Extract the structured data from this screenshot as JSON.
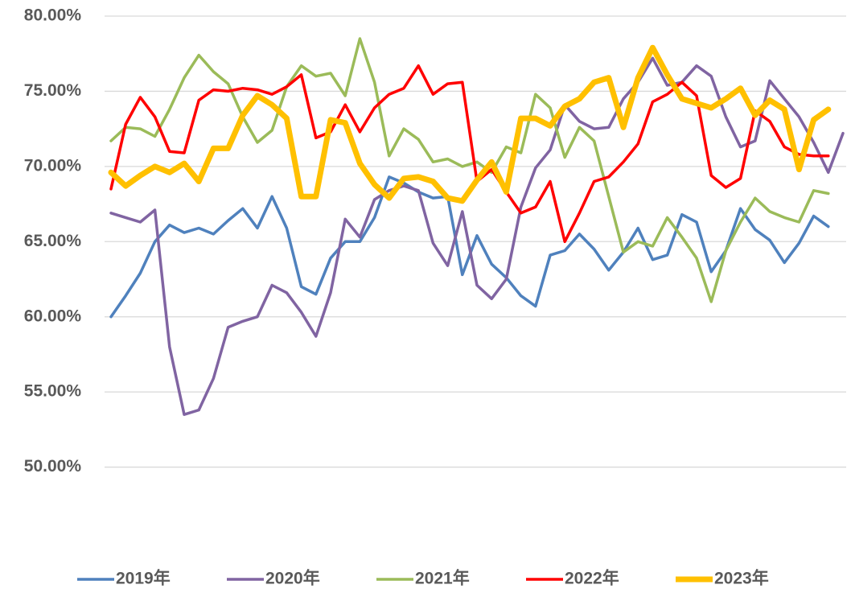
{
  "chart_data": {
    "type": "line",
    "categories": [
      null,
      null,
      null,
      null,
      null,
      null,
      null,
      null,
      null,
      null,
      null,
      null,
      null,
      null,
      null,
      null,
      null,
      null,
      null,
      null,
      null,
      null,
      null,
      null,
      null,
      null,
      null,
      null,
      null,
      null,
      null,
      null,
      null,
      null,
      null,
      null,
      null,
      null,
      null,
      null,
      null,
      null,
      null,
      null,
      null,
      null,
      null,
      null,
      null,
      null,
      null
    ],
    "series": [
      {
        "name": "2019年",
        "color": "#4f81bd",
        "width": 3.5,
        "values": [
          60.0,
          61.4,
          62.9,
          65.0,
          66.1,
          65.6,
          65.9,
          65.5,
          66.4,
          67.2,
          65.9,
          68.0,
          65.9,
          62.0,
          61.5,
          63.9,
          65.0,
          65.0,
          66.6,
          69.3,
          68.9,
          68.3,
          67.9,
          68.0,
          62.8,
          65.4,
          63.5,
          62.6,
          61.4,
          60.7,
          64.1,
          64.4,
          65.5,
          64.5,
          63.1,
          64.3,
          65.9,
          63.8,
          64.1,
          66.8,
          66.3,
          63.0,
          64.4,
          67.2,
          65.8,
          65.1,
          63.6,
          64.9,
          66.7,
          66.0,
          null
        ]
      },
      {
        "name": "2020年",
        "color": "#8064a2",
        "width": 3.5,
        "values": [
          66.9,
          66.6,
          66.3,
          67.1,
          58.0,
          53.5,
          53.8,
          55.9,
          59.3,
          59.7,
          60.0,
          62.1,
          61.6,
          60.3,
          58.7,
          61.6,
          66.5,
          65.3,
          67.8,
          68.4,
          68.7,
          68.4,
          64.9,
          63.4,
          67.0,
          62.1,
          61.2,
          62.5,
          67.3,
          69.9,
          71.1,
          74.1,
          73.0,
          72.5,
          72.6,
          74.5,
          75.6,
          77.2,
          75.4,
          75.6,
          76.7,
          76.0,
          73.3,
          71.3,
          71.7,
          75.7,
          74.5,
          73.3,
          71.6,
          69.6,
          72.2
        ]
      },
      {
        "name": "2021年",
        "color": "#9bbb59",
        "width": 3.5,
        "values": [
          71.7,
          72.6,
          72.5,
          72.0,
          73.8,
          75.9,
          77.4,
          76.3,
          75.5,
          73.3,
          71.6,
          72.4,
          75.3,
          76.7,
          76.0,
          76.2,
          74.7,
          78.5,
          75.6,
          70.7,
          72.5,
          71.8,
          70.3,
          70.5,
          70.0,
          70.3,
          69.6,
          71.3,
          70.9,
          74.8,
          73.9,
          70.6,
          72.6,
          71.7,
          68.0,
          64.3,
          65.0,
          64.7,
          66.6,
          65.3,
          63.9,
          61.0,
          64.4,
          66.3,
          67.9,
          67.0,
          66.6,
          66.3,
          68.4,
          68.2,
          null
        ]
      },
      {
        "name": "2022年",
        "color": "#ff0000",
        "width": 3.5,
        "values": [
          68.5,
          72.8,
          74.6,
          73.3,
          71.0,
          70.9,
          74.4,
          75.1,
          75.0,
          75.2,
          75.1,
          74.8,
          75.3,
          76.1,
          71.9,
          72.3,
          74.1,
          72.3,
          73.9,
          74.8,
          75.2,
          76.7,
          74.8,
          75.5,
          75.6,
          69.0,
          69.8,
          68.3,
          66.9,
          67.3,
          69.0,
          65.0,
          66.9,
          69.0,
          69.3,
          70.3,
          71.5,
          74.3,
          74.8,
          75.6,
          74.7,
          69.4,
          68.6,
          69.2,
          73.7,
          73.0,
          71.3,
          70.8,
          70.7,
          70.7,
          null
        ]
      },
      {
        "name": "2023年",
        "color": "#ffc000",
        "width": 7,
        "values": [
          69.6,
          68.7,
          69.4,
          70.0,
          69.6,
          70.2,
          69.0,
          71.2,
          71.2,
          73.4,
          74.7,
          74.1,
          73.2,
          68.0,
          68.0,
          73.1,
          72.9,
          70.2,
          68.8,
          67.9,
          69.2,
          69.3,
          69.0,
          67.9,
          67.7,
          69.1,
          70.3,
          68.3,
          73.2,
          73.2,
          72.7,
          74.0,
          74.5,
          75.6,
          75.9,
          72.6,
          75.9,
          77.9,
          76.1,
          74.5,
          74.2,
          73.9,
          74.5,
          75.2,
          73.4,
          74.4,
          73.8,
          69.8,
          73.1,
          73.8,
          null
        ]
      }
    ],
    "ylim": [
      45,
      80
    ],
    "yticks": [
      {
        "value": 50,
        "label": "50.00%"
      },
      {
        "value": 55,
        "label": "55.00%"
      },
      {
        "value": 60,
        "label": "60.00%"
      },
      {
        "value": 65,
        "label": "65.00%"
      },
      {
        "value": 70,
        "label": "70.00%"
      },
      {
        "value": 75,
        "label": "75.00%"
      },
      {
        "value": 80,
        "label": "80.00%"
      }
    ],
    "grid": true,
    "legend": "bottom"
  }
}
